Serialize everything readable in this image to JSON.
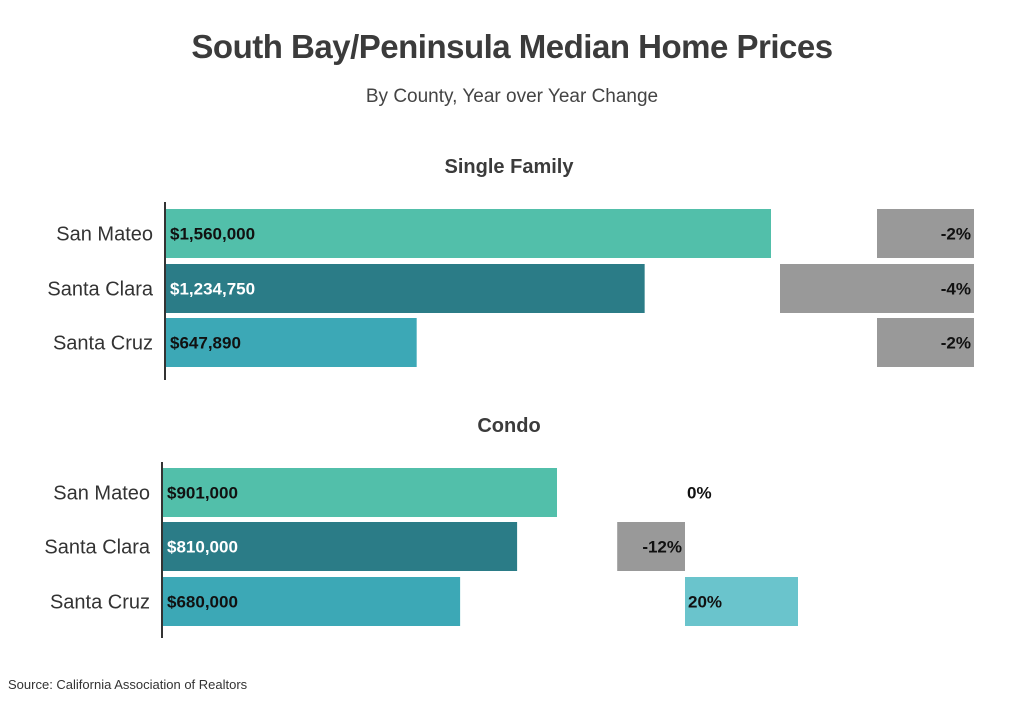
{
  "chart_data": {
    "title": "South Bay/Peninsula Median Home Prices",
    "subtitle": "By County, Year over Year Change",
    "source": "Source:  California Association of Realtors",
    "colors": {
      "San Mateo": "#52bfaa",
      "Santa Clara": "#2b7c87",
      "Santa Cruz": "#3ca8b6",
      "change_negative": "#999999",
      "change_positive": "#6ac4cc"
    },
    "label_colors": {
      "San Mateo": "#111111",
      "Santa Clara": "#ffffff",
      "Santa Cruz": "#111111"
    },
    "panels": [
      {
        "type": "bar",
        "title": "Single Family",
        "categories": [
          "San Mateo",
          "Santa Clara",
          "Santa Cruz"
        ],
        "values": [
          1560000,
          1234750,
          647890
        ],
        "value_labels": [
          "$1,560,000",
          "$1,234,750",
          "$647,890"
        ],
        "change_pct": [
          -2,
          -4,
          -2
        ],
        "change_labels": [
          "-2%",
          "-4%",
          "-2%"
        ]
      },
      {
        "type": "bar",
        "title": "Condo",
        "categories": [
          "San Mateo",
          "Santa Clara",
          "Santa Cruz"
        ],
        "values": [
          901000,
          810000,
          680000
        ],
        "value_labels": [
          "$901,000",
          "$810,000",
          "$680,000"
        ],
        "change_pct": [
          0,
          -12,
          20
        ],
        "change_labels": [
          "0%",
          "-12%",
          "20%"
        ]
      }
    ]
  }
}
